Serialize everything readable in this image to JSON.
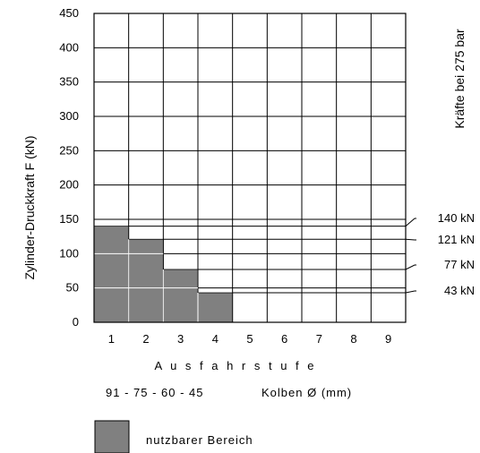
{
  "chart_data": {
    "type": "bar",
    "categories": [
      "1",
      "2",
      "3",
      "4",
      "5",
      "6",
      "7",
      "8",
      "9"
    ],
    "values": [
      140,
      121,
      77,
      43,
      null,
      null,
      null,
      null,
      null
    ],
    "ylabel": "Zylinder-Druckkraft F (kN)",
    "xlabel": "A u s f a h r s t u f e",
    "ylim": [
      0,
      450
    ],
    "yticks": [
      "0",
      "50",
      "100",
      "150",
      "200",
      "250",
      "300",
      "350",
      "400",
      "450"
    ],
    "grid": true,
    "bar_color": "#808080",
    "right_title": "Kräfte bei 275 bar",
    "force_labels": [
      "140 kN",
      "121 kN",
      "77 kN",
      "43 kN"
    ],
    "piston_diameters": "91 - 75 - 60 - 45",
    "piston_label": "Kolben Ø (mm)",
    "legend": [
      {
        "label": "nutzbarer Bereich",
        "color": "#808080"
      }
    ]
  }
}
